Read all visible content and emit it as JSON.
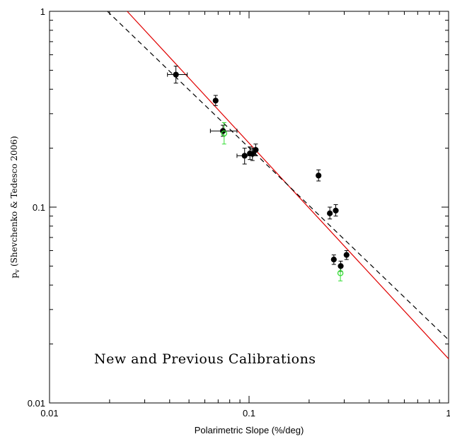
{
  "chart_data": {
    "type": "scatter",
    "title": "",
    "xlabel": "Polarimetric Slope (%/deg)",
    "ylabel_main": "p",
    "ylabel_sub": "v",
    "ylabel_rest": " (Shevchenko & Tedesco 2006)",
    "x_scale": "log",
    "y_scale": "log",
    "xlim": [
      0.01,
      1
    ],
    "ylim": [
      0.01,
      1
    ],
    "x_tick_labels": [
      {
        "value": 0.01,
        "label": "0.01"
      },
      {
        "value": 0.1,
        "label": "0.1"
      },
      {
        "value": 1,
        "label": "1"
      }
    ],
    "y_tick_labels": [
      {
        "value": 0.01,
        "label": "0.01"
      },
      {
        "value": 0.1,
        "label": "0.1"
      },
      {
        "value": 1,
        "label": "1"
      }
    ],
    "annotation": "New and Previous Calibrations",
    "grid": false,
    "series": [
      {
        "color": "#000000",
        "marker": "filled-circle",
        "points": [
          {
            "x": 0.043,
            "y": 0.475,
            "xerr": [
              0.039,
              0.049
            ],
            "yerr": [
              0.43,
              0.525
            ]
          },
          {
            "x": 0.068,
            "y": 0.35,
            "xerr": null,
            "yerr": [
              0.33,
              0.372
            ]
          },
          {
            "x": 0.074,
            "y": 0.245,
            "xerr": [
              0.064,
              0.087
            ],
            "yerr": [
              0.23,
              0.262
            ]
          },
          {
            "x": 0.095,
            "y": 0.183,
            "xerr": [
              0.087,
              0.104
            ],
            "yerr": [
              0.166,
              0.2
            ]
          },
          {
            "x": 0.101,
            "y": 0.188,
            "xerr": null,
            "yerr": [
              0.175,
              0.203
            ]
          },
          {
            "x": 0.104,
            "y": 0.187,
            "xerr": null,
            "yerr": [
              0.173,
              0.2
            ]
          },
          {
            "x": 0.108,
            "y": 0.196,
            "xerr": null,
            "yerr": [
              0.183,
              0.21
            ]
          },
          {
            "x": 0.223,
            "y": 0.145,
            "xerr": null,
            "yerr": [
              0.136,
              0.155
            ]
          },
          {
            "x": 0.254,
            "y": 0.093,
            "xerr": null,
            "yerr": [
              0.087,
              0.1
            ]
          },
          {
            "x": 0.272,
            "y": 0.096,
            "xerr": null,
            "yerr": [
              0.09,
              0.103
            ]
          },
          {
            "x": 0.266,
            "y": 0.054,
            "xerr": null,
            "yerr": [
              0.051,
              0.057
            ]
          },
          {
            "x": 0.288,
            "y": 0.05,
            "xerr": null,
            "yerr": [
              0.047,
              0.053
            ]
          },
          {
            "x": 0.308,
            "y": 0.057,
            "xerr": null,
            "yerr": [
              0.054,
              0.06
            ]
          }
        ]
      },
      {
        "color": "#33dd33",
        "marker": "open-circle",
        "points": [
          {
            "x": 0.075,
            "y": 0.238,
            "xerr": null,
            "yerr": [
              0.21,
              0.27
            ]
          },
          {
            "x": 0.287,
            "y": 0.046,
            "xerr": null,
            "yerr": [
              0.042,
              0.05
            ]
          }
        ]
      }
    ],
    "lines": [
      {
        "color": "#e00000",
        "style": "solid",
        "points": [
          [
            0.0245,
            1.0
          ],
          [
            1.0,
            0.0168
          ]
        ]
      },
      {
        "color": "#000000",
        "style": "dashed",
        "points": [
          [
            0.0195,
            1.0
          ],
          [
            1.0,
            0.021
          ]
        ]
      }
    ]
  }
}
